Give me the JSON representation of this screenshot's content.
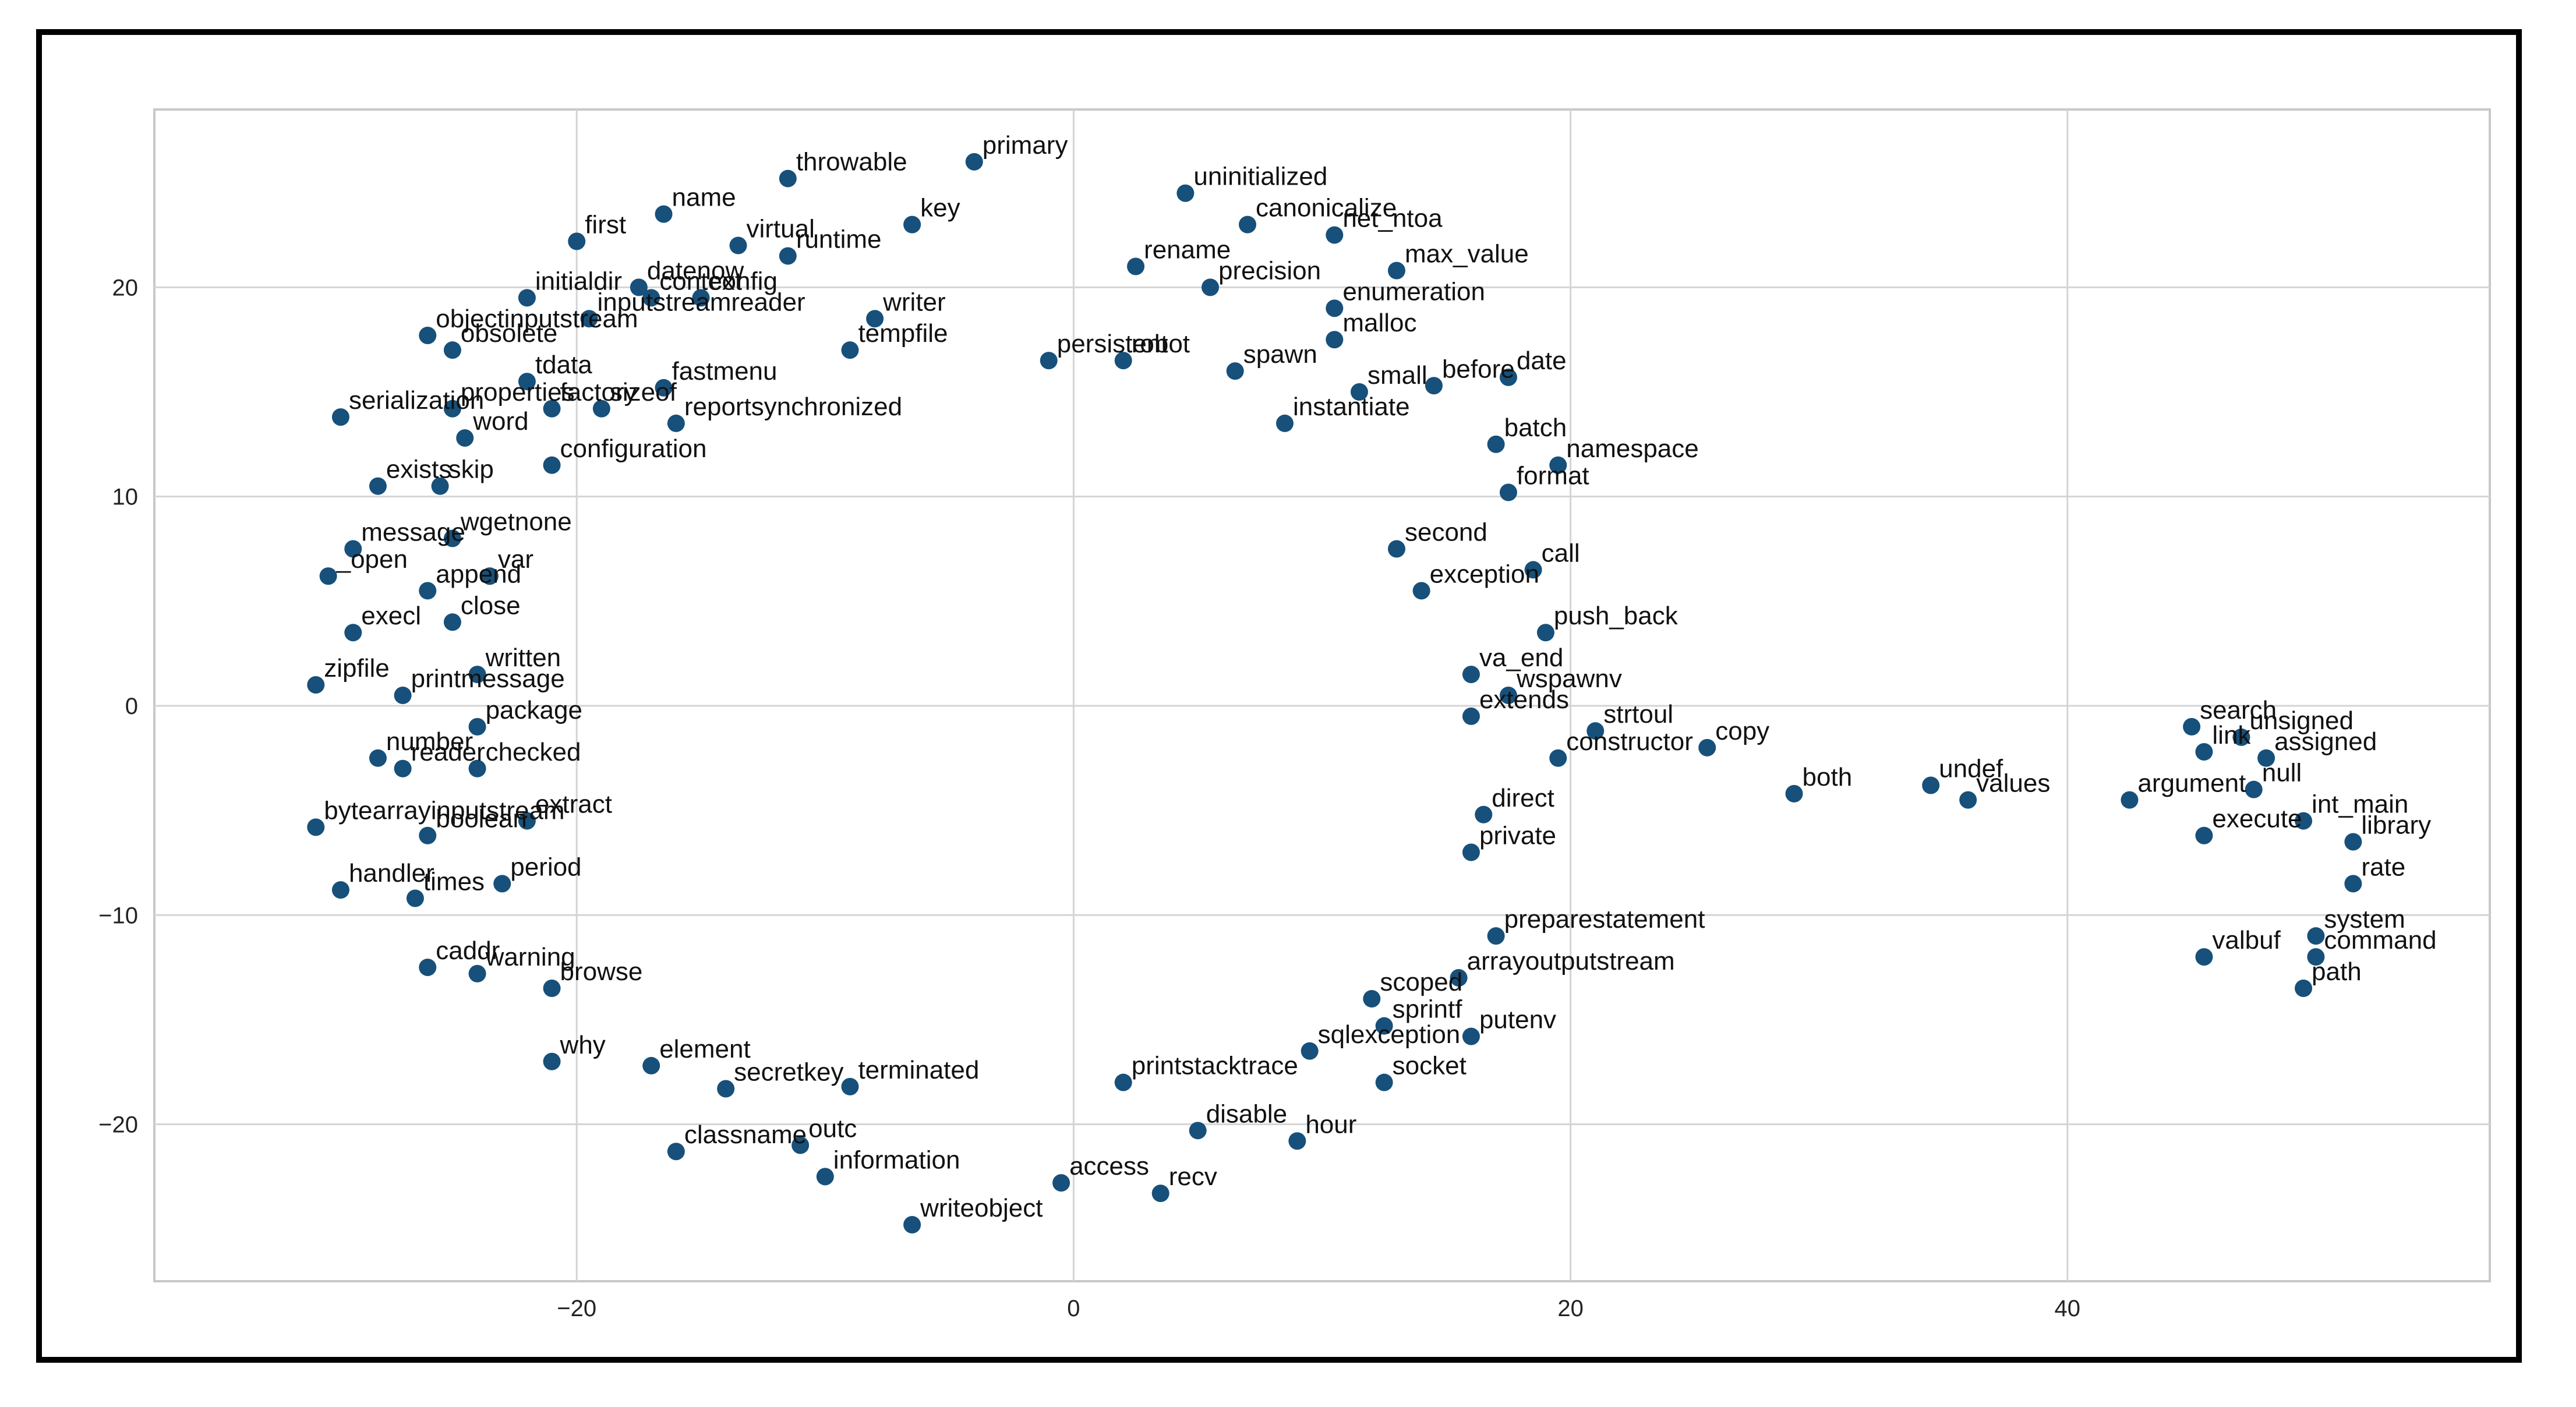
{
  "chart_data": {
    "type": "scatter",
    "title": "",
    "xlabel": "",
    "ylabel": "",
    "xlim": [
      -37,
      57
    ],
    "ylim": [
      -27.5,
      28.5
    ],
    "xticks": [
      -20,
      0,
      20,
      40
    ],
    "yticks": [
      20,
      10,
      0,
      -10,
      -20
    ],
    "xtick_labels": [
      "−20",
      "0",
      "20",
      "40"
    ],
    "ytick_labels": [
      "20",
      "10",
      "0",
      "−10",
      "−20"
    ],
    "grid": true,
    "point_color": "#17507a",
    "points": [
      {
        "label": "primary",
        "x": -4,
        "y": 26
      },
      {
        "label": "throwable",
        "x": -11.5,
        "y": 25.2
      },
      {
        "label": "uninitialized",
        "x": 4.5,
        "y": 24.5
      },
      {
        "label": "name",
        "x": -16.5,
        "y": 23.5
      },
      {
        "label": "canonicalize",
        "x": 7,
        "y": 23
      },
      {
        "label": "first",
        "x": -20,
        "y": 22.2
      },
      {
        "label": "virtual",
        "x": -13.5,
        "y": 22
      },
      {
        "label": "key",
        "x": -6.5,
        "y": 23
      },
      {
        "label": "net_ntoa",
        "x": 10.5,
        "y": 22.5
      },
      {
        "label": "runtime",
        "x": -11.5,
        "y": 21.5
      },
      {
        "label": "rename",
        "x": 2.5,
        "y": 21
      },
      {
        "label": "max_value",
        "x": 13,
        "y": 20.8
      },
      {
        "label": "initialdir",
        "x": -22,
        "y": 19.5
      },
      {
        "label": "context",
        "x": -17,
        "y": 19.5
      },
      {
        "label": "config",
        "x": -15,
        "y": 19.5
      },
      {
        "label": "precision",
        "x": 5.5,
        "y": 20
      },
      {
        "label": "datenow",
        "x": -17.5,
        "y": 20
      },
      {
        "label": "enumeration",
        "x": 10.5,
        "y": 19
      },
      {
        "label": "inputstreamreader",
        "x": -19.5,
        "y": 18.5
      },
      {
        "label": "writer",
        "x": -8,
        "y": 18.5
      },
      {
        "label": "objectinputstream",
        "x": -26,
        "y": 17.7
      },
      {
        "label": "obsolete",
        "x": -25,
        "y": 17
      },
      {
        "label": "malloc",
        "x": 10.5,
        "y": 17.5
      },
      {
        "label": "tempfile",
        "x": -9,
        "y": 17
      },
      {
        "label": "persistent",
        "x": -1,
        "y": 16.5
      },
      {
        "label": "robot",
        "x": 2,
        "y": 16.5
      },
      {
        "label": "spawn",
        "x": 6.5,
        "y": 16
      },
      {
        "label": "tdata",
        "x": -22,
        "y": 15.5
      },
      {
        "label": "fastmenu",
        "x": -16.5,
        "y": 15.2
      },
      {
        "label": "before",
        "x": 14.5,
        "y": 15.3
      },
      {
        "label": "date",
        "x": 17.5,
        "y": 15.7
      },
      {
        "label": "small",
        "x": 11.5,
        "y": 15
      },
      {
        "label": "properties",
        "x": -25,
        "y": 14.2
      },
      {
        "label": "factory",
        "x": -21,
        "y": 14.2
      },
      {
        "label": "sizeof",
        "x": -19,
        "y": 14.2
      },
      {
        "label": "reportsynchronized",
        "x": -16,
        "y": 13.5
      },
      {
        "label": "serialization",
        "x": -29.5,
        "y": 13.8
      },
      {
        "label": "word",
        "x": -24.5,
        "y": 12.8
      },
      {
        "label": "instantiate",
        "x": 8.5,
        "y": 13.5
      },
      {
        "label": "namespace",
        "x": 19.5,
        "y": 11.5
      },
      {
        "label": "batch",
        "x": 17,
        "y": 12.5
      },
      {
        "label": "exists",
        "x": -28,
        "y": 10.5
      },
      {
        "label": "skip",
        "x": -25.5,
        "y": 10.5
      },
      {
        "label": "configuration",
        "x": -21,
        "y": 11.5
      },
      {
        "label": "format",
        "x": 17.5,
        "y": 10.2
      },
      {
        "label": "wgetnone",
        "x": -25,
        "y": 8
      },
      {
        "label": "message",
        "x": -29,
        "y": 7.5
      },
      {
        "label": "second",
        "x": 13,
        "y": 7.5
      },
      {
        "label": "call",
        "x": 18.5,
        "y": 6.5
      },
      {
        "label": "_open",
        "x": -30,
        "y": 6.2
      },
      {
        "label": "var",
        "x": -23.5,
        "y": 6.2
      },
      {
        "label": "append",
        "x": -26,
        "y": 5.5
      },
      {
        "label": "exception",
        "x": 14,
        "y": 5.5
      },
      {
        "label": "execl",
        "x": -29,
        "y": 3.5
      },
      {
        "label": "close",
        "x": -25,
        "y": 4
      },
      {
        "label": "push_back",
        "x": 19,
        "y": 3.5
      },
      {
        "label": "written",
        "x": -24,
        "y": 1.5
      },
      {
        "label": "zipfile",
        "x": -30.5,
        "y": 1
      },
      {
        "label": "printmessage",
        "x": -27,
        "y": 0.5
      },
      {
        "label": "va_end",
        "x": 16,
        "y": 1.5
      },
      {
        "label": "wspawnv",
        "x": 17.5,
        "y": 0.5
      },
      {
        "label": "extends",
        "x": 16,
        "y": -0.5
      },
      {
        "label": "package",
        "x": -24,
        "y": -1
      },
      {
        "label": "strtoul",
        "x": 21,
        "y": -1.2
      },
      {
        "label": "copy",
        "x": 25.5,
        "y": -2
      },
      {
        "label": "constructor",
        "x": 19.5,
        "y": -2.5
      },
      {
        "label": "number",
        "x": -28,
        "y": -2.5
      },
      {
        "label": "reader",
        "x": -27,
        "y": -3
      },
      {
        "label": "checked",
        "x": -24,
        "y": -3
      },
      {
        "label": "bytearrayinputstream",
        "x": -30.5,
        "y": -5.8
      },
      {
        "label": "boolean",
        "x": -26,
        "y": -6.2
      },
      {
        "label": "extract",
        "x": -22,
        "y": -5.5
      },
      {
        "label": "private",
        "x": 16,
        "y": -7
      },
      {
        "label": "direct",
        "x": 16.5,
        "y": -5.2
      },
      {
        "label": "handler",
        "x": -29.5,
        "y": -8.8
      },
      {
        "label": "times",
        "x": -26.5,
        "y": -9.2
      },
      {
        "label": "period",
        "x": -23,
        "y": -8.5
      },
      {
        "label": "preparestatement",
        "x": 17,
        "y": -11
      },
      {
        "label": "caddr",
        "x": -26,
        "y": -12.5
      },
      {
        "label": "warning",
        "x": -24,
        "y": -12.8
      },
      {
        "label": "browse",
        "x": -21,
        "y": -13.5
      },
      {
        "label": "arrayoutputstream",
        "x": 15.5,
        "y": -13
      },
      {
        "label": "scoped",
        "x": 12,
        "y": -14
      },
      {
        "label": "sprintf",
        "x": 12.5,
        "y": -15.3
      },
      {
        "label": "putenv",
        "x": 16,
        "y": -15.8
      },
      {
        "label": "why",
        "x": -21,
        "y": -17
      },
      {
        "label": "element",
        "x": -17,
        "y": -17.2
      },
      {
        "label": "sqlexception",
        "x": 9.5,
        "y": -16.5
      },
      {
        "label": "socket",
        "x": 12.5,
        "y": -18
      },
      {
        "label": "secretkey",
        "x": -14,
        "y": -18.3
      },
      {
        "label": "terminated",
        "x": -9,
        "y": -18.2
      },
      {
        "label": "printstacktrace",
        "x": 2,
        "y": -18
      },
      {
        "label": "classname",
        "x": -16,
        "y": -21.3
      },
      {
        "label": "outc",
        "x": -11,
        "y": -21
      },
      {
        "label": "hour",
        "x": 9,
        "y": -20.8
      },
      {
        "label": "disable",
        "x": 5,
        "y": -20.3
      },
      {
        "label": "information",
        "x": -10,
        "y": -22.5
      },
      {
        "label": "access",
        "x": -0.5,
        "y": -22.8
      },
      {
        "label": "recv",
        "x": 3.5,
        "y": -23.3
      },
      {
        "label": "writeobject",
        "x": -6.5,
        "y": -24.8
      },
      {
        "label": "both",
        "x": 29,
        "y": -4.2
      },
      {
        "label": "undef",
        "x": 34.5,
        "y": -3.8
      },
      {
        "label": "values",
        "x": 36,
        "y": -4.5
      },
      {
        "label": "argument",
        "x": 42.5,
        "y": -4.5
      },
      {
        "label": "search",
        "x": 45,
        "y": -1
      },
      {
        "label": "unsigned",
        "x": 47,
        "y": -1.5
      },
      {
        "label": "link",
        "x": 45.5,
        "y": -2.2
      },
      {
        "label": "assigned",
        "x": 48,
        "y": -2.5
      },
      {
        "label": "null",
        "x": 47.5,
        "y": -4
      },
      {
        "label": "int_main",
        "x": 49.5,
        "y": -5.5
      },
      {
        "label": "execute",
        "x": 45.5,
        "y": -6.2
      },
      {
        "label": "library",
        "x": 51.5,
        "y": -6.5
      },
      {
        "label": "rate",
        "x": 51.5,
        "y": -8.5
      },
      {
        "label": "system",
        "x": 50,
        "y": -11
      },
      {
        "label": "command",
        "x": 50,
        "y": -12
      },
      {
        "label": "valbuf",
        "x": 45.5,
        "y": -12
      },
      {
        "label": "path",
        "x": 49.5,
        "y": -13.5
      }
    ]
  }
}
